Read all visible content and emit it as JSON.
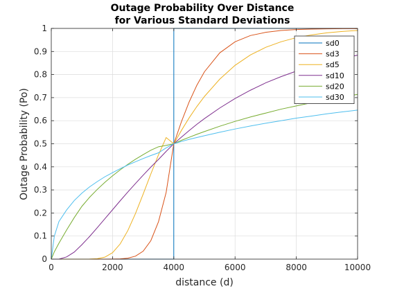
{
  "chart_data": {
    "type": "line",
    "title": [
      "Outage Probability Over Distance",
      "for Various Standard Deviations"
    ],
    "xlabel": "distance (d)",
    "ylabel": "Outage Probability (Po)",
    "xlim": [
      0,
      10000
    ],
    "ylim": [
      0,
      1
    ],
    "xticks": [
      0,
      2000,
      4000,
      6000,
      8000,
      10000
    ],
    "yticks": [
      0,
      0.1,
      0.2,
      0.3,
      0.4,
      0.5,
      0.6,
      0.7,
      0.8,
      0.9,
      1
    ],
    "grid": true,
    "legend_position": "top-right",
    "x": [
      0,
      100,
      250,
      500,
      750,
      1000,
      1250,
      1500,
      1750,
      2000,
      2250,
      2500,
      2750,
      3000,
      3250,
      3500,
      3750,
      3999,
      4000,
      4001,
      4250,
      4500,
      4750,
      5000,
      5500,
      6000,
      6500,
      7000,
      7500,
      8000,
      8500,
      9000,
      9500,
      10000
    ],
    "series": [
      {
        "name": "sd0",
        "color": "#0072BD",
        "values": [
          0,
          0,
          0,
          0,
          0,
          0,
          0,
          0,
          0,
          0,
          0,
          0,
          0,
          0,
          0,
          0,
          0,
          0,
          0.5,
          1,
          1,
          1,
          1,
          1,
          1,
          1,
          1,
          1,
          1,
          1,
          1,
          1,
          1,
          1
        ]
      },
      {
        "name": "sd3",
        "color": "#D95319",
        "values": [
          0,
          0,
          0,
          0,
          0,
          0,
          0,
          0,
          0,
          0.0003,
          0.0012,
          0.0042,
          0.0129,
          0.0345,
          0.08,
          0.162,
          0.289,
          0.5,
          0.5,
          0.5,
          0.596,
          0.681,
          0.753,
          0.812,
          0.894,
          0.942,
          0.969,
          0.983,
          0.991,
          0.995,
          0.997,
          0.998,
          0.999,
          0.999
        ]
      },
      {
        "name": "sd5",
        "color": "#EDB120",
        "values": [
          0,
          0,
          0,
          0,
          0,
          0,
          0.0002,
          0.0018,
          0.0086,
          0.0278,
          0.066,
          0.124,
          0.198,
          0.282,
          0.369,
          0.452,
          0.527,
          0.5,
          0.5,
          0.5,
          0.558,
          0.612,
          0.661,
          0.705,
          0.78,
          0.84,
          0.885,
          0.918,
          0.942,
          0.96,
          0.972,
          0.981,
          0.987,
          0.991
        ]
      },
      {
        "name": "sd10",
        "color": "#7E2F8E",
        "values": [
          0,
          0,
          0,
          0.0096,
          0.0306,
          0.0627,
          0.098,
          0.136,
          0.175,
          0.214,
          0.253,
          0.291,
          0.328,
          0.364,
          0.399,
          0.432,
          0.467,
          0.5,
          0.5,
          0.5,
          0.529,
          0.557,
          0.584,
          0.609,
          0.655,
          0.696,
          0.732,
          0.764,
          0.791,
          0.815,
          0.836,
          0.854,
          0.87,
          0.884
        ]
      },
      {
        "name": "sd20",
        "color": "#77AC30",
        "values": [
          0,
          0.032,
          0.069,
          0.126,
          0.18,
          0.229,
          0.268,
          0.302,
          0.333,
          0.361,
          0.387,
          0.411,
          0.433,
          0.453,
          0.472,
          0.487,
          0.493,
          0.5,
          0.5,
          0.5,
          0.515,
          0.528,
          0.541,
          0.553,
          0.576,
          0.597,
          0.616,
          0.633,
          0.65,
          0.664,
          0.678,
          0.691,
          0.703,
          0.714
        ]
      },
      {
        "name": "sd30",
        "color": "#4DBEEE",
        "values": [
          0,
          0.1,
          0.163,
          0.213,
          0.254,
          0.286,
          0.313,
          0.336,
          0.357,
          0.375,
          0.392,
          0.408,
          0.422,
          0.436,
          0.449,
          0.461,
          0.482,
          0.5,
          0.5,
          0.5,
          0.51,
          0.519,
          0.527,
          0.535,
          0.55,
          0.564,
          0.577,
          0.589,
          0.6,
          0.611,
          0.62,
          0.63,
          0.638,
          0.646
        ]
      }
    ]
  }
}
